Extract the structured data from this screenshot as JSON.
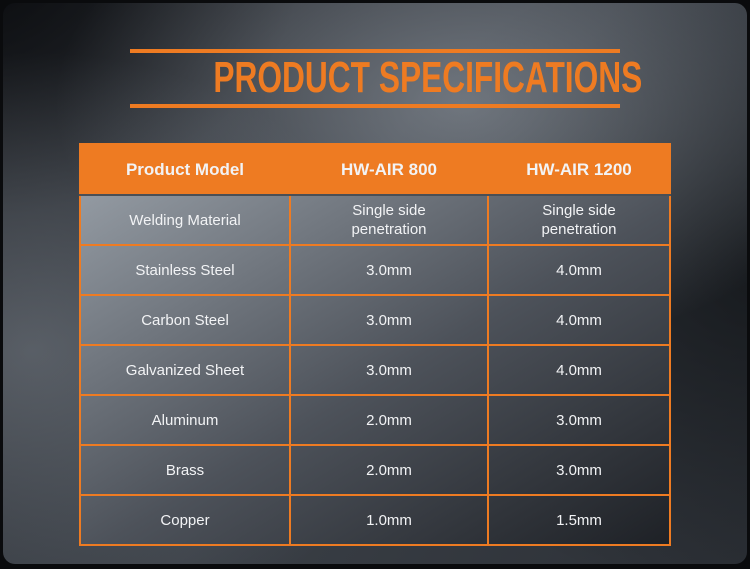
{
  "page": {
    "title": "PRODUCT SPECIFICATIONS"
  },
  "colors": {
    "accent_orange": "#EE7B22",
    "text_white": "#F2F3F5",
    "background_dark": "#25282d",
    "background_light": "#8d9299"
  },
  "table": {
    "columns": [
      "Product Model",
      "HW-AIR 800",
      "HW-AIR 1200"
    ],
    "rows": [
      [
        "Welding Material",
        "Single side\npenetration",
        "Single side\npenetration"
      ],
      [
        "Stainless Steel",
        "3.0mm",
        "4.0mm"
      ],
      [
        "Carbon Steel",
        "3.0mm",
        "4.0mm"
      ],
      [
        "Galvanized Sheet",
        "3.0mm",
        "4.0mm"
      ],
      [
        "Aluminum",
        "2.0mm",
        "3.0mm"
      ],
      [
        "Brass",
        "2.0mm",
        "3.0mm"
      ],
      [
        "Copper",
        "1.0mm",
        "1.5mm"
      ]
    ]
  }
}
